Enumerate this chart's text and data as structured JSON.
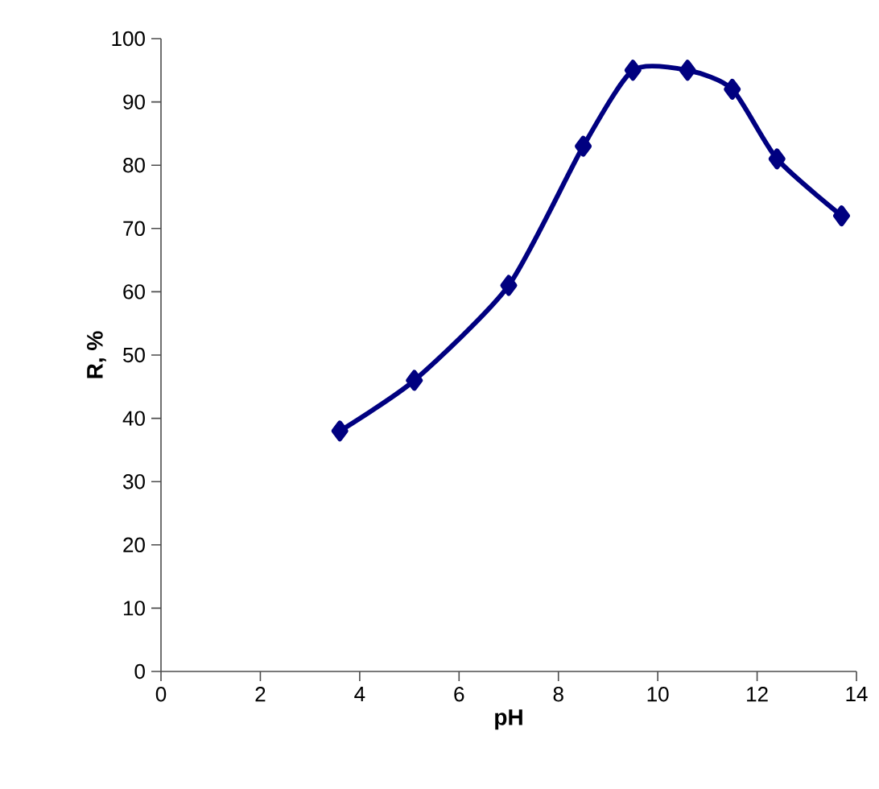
{
  "chart_data": {
    "type": "line",
    "xlabel": "pH",
    "ylabel": "R, %",
    "x": [
      3.6,
      5.1,
      7.0,
      8.5,
      9.5,
      10.6,
      11.5,
      12.4,
      13.7
    ],
    "series": [
      {
        "color": "#000080",
        "values": [
          38,
          46,
          61,
          83,
          95,
          95,
          92,
          81,
          72
        ]
      }
    ],
    "xlim": [
      0,
      14
    ],
    "xticks": [
      0,
      2,
      4,
      6,
      8,
      10,
      12,
      14
    ],
    "ylim": [
      0,
      100
    ],
    "yticks": [
      0,
      10,
      20,
      30,
      40,
      50,
      60,
      70,
      80,
      90,
      100
    ],
    "marker": "diamond",
    "line_style": "solid"
  }
}
